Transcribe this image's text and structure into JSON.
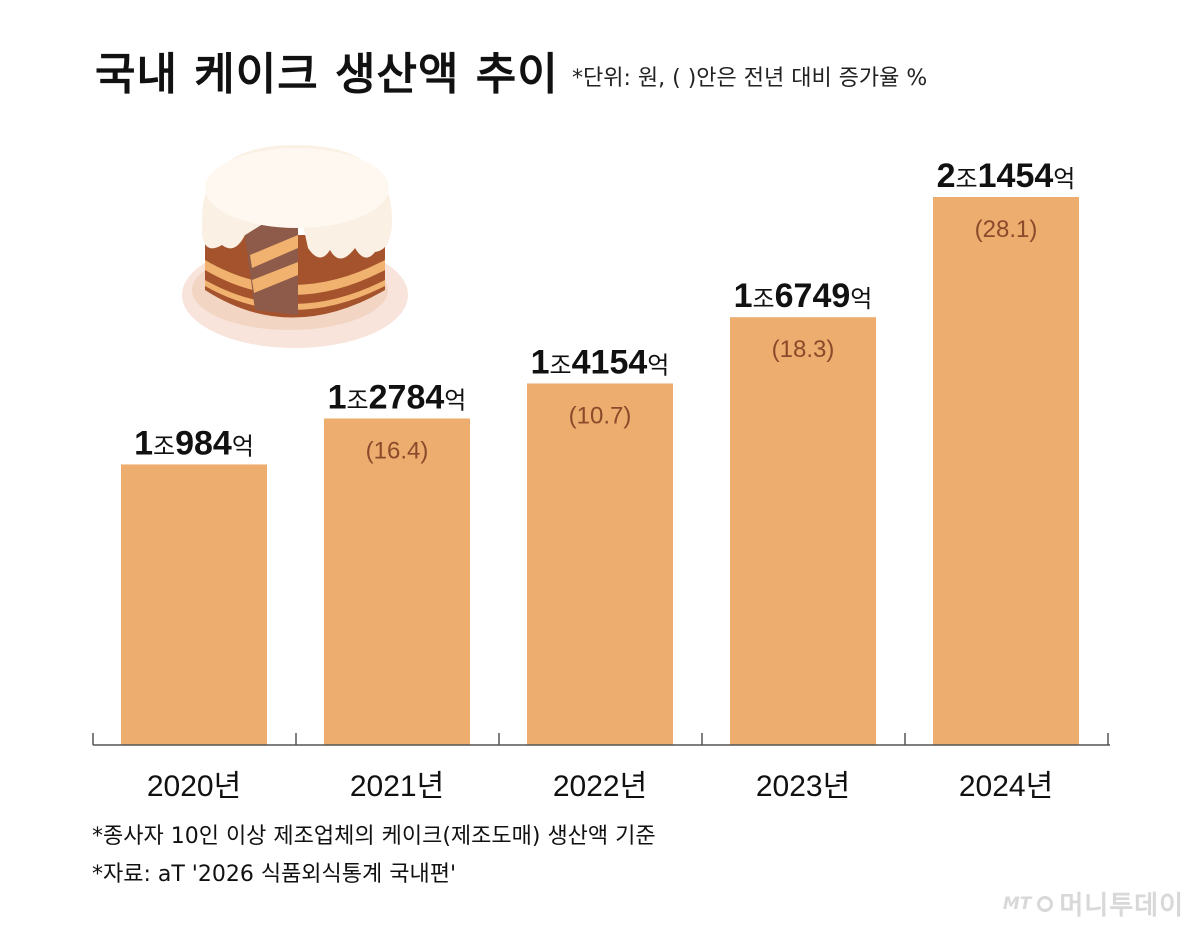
{
  "title": "국내 케이크 생산액 추이",
  "subtitle": "*단위: 원, ( )안은 전년 대비 증가율 %",
  "notes": [
    "*종사자 10인 이상 제조업체의 케이크(제조도매) 생산액 기준",
    "*자료: aT '2026 식품외식통계 국내편'"
  ],
  "logo": {
    "mark": "MT",
    "text": "머니투데이"
  },
  "colors": {
    "bar": "#ECAD6E",
    "growth_text": "#8B4A2B",
    "axis": "#555555"
  },
  "chart_data": {
    "type": "bar",
    "categories": [
      "2020년",
      "2021년",
      "2022년",
      "2023년",
      "2024년"
    ],
    "values": [
      10984,
      12784,
      14154,
      16749,
      21454
    ],
    "unit": "억 원",
    "value_labels": [
      {
        "jo": "1",
        "jo_unit": "조",
        "eok": "984",
        "eok_unit": "억"
      },
      {
        "jo": "1",
        "jo_unit": "조",
        "eok": "2784",
        "eok_unit": "억"
      },
      {
        "jo": "1",
        "jo_unit": "조",
        "eok": "4154",
        "eok_unit": "억"
      },
      {
        "jo": "1",
        "jo_unit": "조",
        "eok": "6749",
        "eok_unit": "억"
      },
      {
        "jo": "2",
        "jo_unit": "조",
        "eok": "1454",
        "eok_unit": "억"
      }
    ],
    "growth_labels": [
      "",
      "(16.4)",
      "(10.7)",
      "(18.3)",
      "(28.1)"
    ],
    "ylim": [
      0,
      22000
    ],
    "grid": false,
    "legend": "none"
  }
}
